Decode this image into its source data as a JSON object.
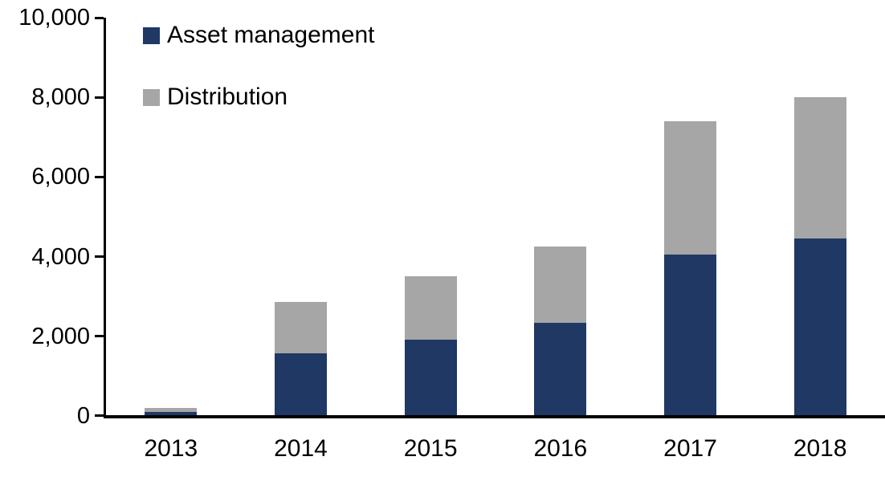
{
  "chart_data": {
    "type": "bar",
    "stacked": true,
    "title": "",
    "xlabel": "",
    "ylabel": "",
    "categories": [
      "2013",
      "2014",
      "2015",
      "2016",
      "2017",
      "2018"
    ],
    "series": [
      {
        "name": "Asset management",
        "color": "#1F3864",
        "values": [
          90,
          1550,
          1900,
          2320,
          4050,
          4450
        ]
      },
      {
        "name": "Distribution",
        "color": "#A6A6A6",
        "values": [
          100,
          1300,
          1600,
          1930,
          3350,
          3550
        ]
      }
    ],
    "stack_totals": [
      190,
      2850,
      3500,
      4250,
      7400,
      8000
    ],
    "ylim": [
      0,
      10000
    ],
    "ytick_interval": 2000,
    "ytick_labels_bottom_to_top": [
      "0",
      "2,000",
      "4,000",
      "6,000",
      "8,000",
      "10,000"
    ],
    "grid": false,
    "legend_position": "top-left",
    "axis_color": "#000000",
    "background_color": "#FFFFFF"
  }
}
